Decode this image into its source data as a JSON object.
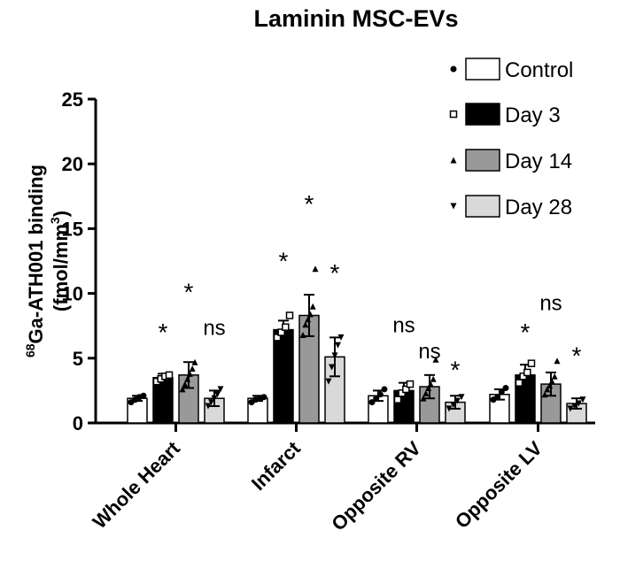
{
  "chart_data": {
    "type": "bar",
    "title": "Laminin MSC-EVs",
    "ylabel_sup": "68",
    "ylabel_main": "Ga-ATH001 binding",
    "ylabel_unit_pre": "(fmol/mm",
    "ylabel_unit_sup": "3",
    "ylabel_unit_post": ")",
    "ylim": [
      0,
      25
    ],
    "yticks": [
      "0",
      "5",
      "10",
      "15",
      "20",
      "25"
    ],
    "categories": [
      "Whole Heart",
      "Infarct",
      "Opposite RV",
      "Opposite LV"
    ],
    "legend_position": "top-right",
    "series": [
      {
        "name": "Control",
        "fill": "#ffffff",
        "marker": "circle",
        "values": [
          1.9,
          1.9,
          2.1,
          2.2
        ],
        "errors": [
          0.2,
          0.2,
          0.4,
          0.4
        ],
        "points": [
          [
            1.6,
            1.8,
            2.0,
            2.1
          ],
          [
            1.6,
            1.8,
            1.9,
            2.0
          ],
          [
            1.6,
            1.9,
            2.2,
            2.6
          ],
          [
            1.8,
            2.0,
            2.4,
            2.7
          ]
        ]
      },
      {
        "name": "Day 3",
        "fill": "#000000",
        "marker": "square",
        "values": [
          3.5,
          7.2,
          2.5,
          3.7
        ],
        "errors": [
          0.3,
          0.7,
          0.6,
          0.8
        ],
        "points": [
          [
            3.2,
            3.4,
            3.6,
            3.7
          ],
          [
            6.6,
            7.0,
            7.4,
            8.3
          ],
          [
            1.8,
            2.3,
            2.6,
            3.0
          ],
          [
            3.1,
            3.6,
            3.9,
            4.6
          ]
        ]
      },
      {
        "name": "Day 14",
        "fill": "#999999",
        "marker": "triangle-up",
        "values": [
          3.7,
          8.3,
          2.8,
          3.0
        ],
        "errors": [
          1.0,
          1.6,
          0.9,
          0.9
        ],
        "points": [
          [
            2.6,
            3.0,
            3.4,
            3.8,
            4.2,
            4.7
          ],
          [
            6.8,
            7.6,
            8.0,
            8.4,
            9.0,
            11.9
          ],
          [
            1.9,
            2.3,
            2.7,
            3.0,
            3.4,
            4.9
          ],
          [
            2.2,
            2.6,
            2.9,
            3.2,
            3.6,
            4.8
          ]
        ]
      },
      {
        "name": "Day 28",
        "fill": "#d9d9d9",
        "marker": "triangle-down",
        "values": [
          1.9,
          5.1,
          1.6,
          1.5
        ],
        "errors": [
          0.6,
          1.5,
          0.5,
          0.4
        ],
        "points": [
          [
            1.3,
            1.6,
            1.9,
            2.2,
            2.6
          ],
          [
            3.2,
            4.3,
            5.2,
            6.0,
            6.6
          ],
          [
            1.1,
            1.4,
            1.7,
            2.0
          ],
          [
            1.1,
            1.3,
            1.5,
            1.8
          ]
        ]
      }
    ],
    "annotations": [
      {
        "category": 0,
        "series": 1,
        "text": "*",
        "y": 7.3
      },
      {
        "category": 0,
        "series": 2,
        "text": "*",
        "y": 10.4
      },
      {
        "category": 0,
        "series": 3,
        "text": "ns",
        "y": 6.8
      },
      {
        "category": 1,
        "series": 1,
        "text": "*",
        "y": 12.8
      },
      {
        "category": 1,
        "series": 2,
        "text": "*",
        "y": 17.2
      },
      {
        "category": 1,
        "series": 3,
        "text": "*",
        "y": 11.9
      },
      {
        "category": 2,
        "series": 1,
        "text": "ns",
        "y": 7.0
      },
      {
        "category": 2,
        "series": 2,
        "text": "ns",
        "y": 5.0
      },
      {
        "category": 2,
        "series": 3,
        "text": "*",
        "y": 4.4
      },
      {
        "category": 3,
        "series": 1,
        "text": "*",
        "y": 7.3
      },
      {
        "category": 3,
        "series": 2,
        "text": "ns",
        "y": 8.7
      },
      {
        "category": 3,
        "series": 3,
        "text": "*",
        "y": 5.5
      }
    ]
  }
}
